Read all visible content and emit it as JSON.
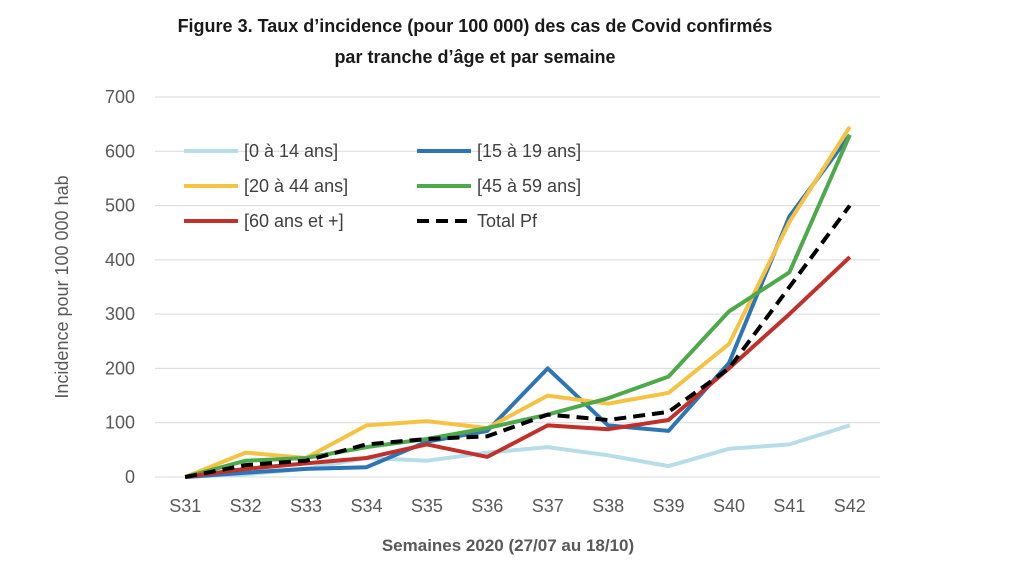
{
  "chart_data": {
    "type": "line",
    "title_line1": "Figure 3. Taux d’incidence (pour 100 000) des cas de Covid confirmés",
    "title_line2": "par tranche d’âge et par semaine",
    "xlabel": "Semaines 2020 (27/07 au 18/10)",
    "ylabel": "Incidence pour 100 000 hab",
    "ylim": [
      0,
      700
    ],
    "yticks": [
      0,
      100,
      200,
      300,
      400,
      500,
      600,
      700
    ],
    "grid": true,
    "legend_position": "top-left",
    "categories": [
      "S31",
      "S32",
      "S33",
      "S34",
      "S35",
      "S36",
      "S37",
      "S38",
      "S39",
      "S40",
      "S41",
      "S42"
    ],
    "series": [
      {
        "name": "[0 à 14 ans]",
        "color": "#b7dde8",
        "dashed": false,
        "values": [
          0,
          5,
          15,
          35,
          30,
          45,
          55,
          40,
          20,
          52,
          60,
          95
        ]
      },
      {
        "name": "[15 à 19 ans]",
        "color": "#2e75b6",
        "dashed": false,
        "values": [
          0,
          8,
          15,
          18,
          65,
          85,
          200,
          95,
          85,
          210,
          480,
          630
        ]
      },
      {
        "name": "[20 à 44 ans]",
        "color": "#f5c242",
        "dashed": false,
        "values": [
          0,
          45,
          35,
          95,
          103,
          90,
          150,
          135,
          155,
          245,
          470,
          645
        ]
      },
      {
        "name": "[45 à 59 ans]",
        "color": "#4ea94b",
        "dashed": false,
        "values": [
          0,
          30,
          35,
          55,
          70,
          90,
          115,
          145,
          185,
          305,
          377,
          630
        ]
      },
      {
        "name": "[60 ans et +]",
        "color": "#c0312b",
        "dashed": false,
        "values": [
          0,
          15,
          25,
          35,
          60,
          37,
          95,
          88,
          105,
          200,
          300,
          405
        ]
      },
      {
        "name": "Total Pf",
        "color": "#000000",
        "dashed": true,
        "values": [
          0,
          22,
          30,
          60,
          70,
          75,
          115,
          105,
          120,
          200,
          350,
          500
        ]
      }
    ]
  }
}
